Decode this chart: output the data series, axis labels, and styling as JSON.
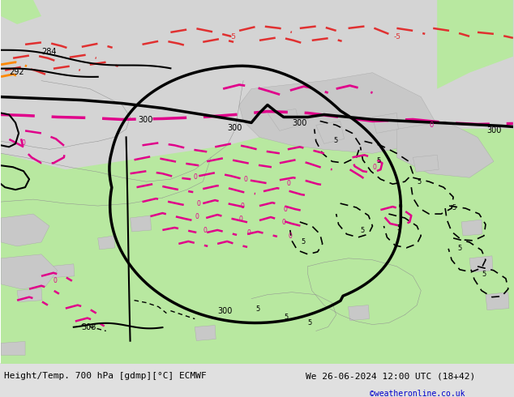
{
  "title_left": "Height/Temp. 700 hPa [gdmp][°C] ECMWF",
  "title_right": "We 26-06-2024 12:00 UTC (18+42)",
  "copyright": "©weatheronline.co.uk",
  "fig_width": 6.34,
  "fig_height": 4.9,
  "land_green": "#b8e8a0",
  "sea_gray": "#c8c8c8",
  "bg_top": "#d4d4d4",
  "text_color_left": "#000000",
  "text_color_right": "#000000",
  "text_color_copy": "#0000cc",
  "black_contour_lw": 2.5,
  "thin_black_lw": 1.5,
  "red_dash_color": "#e03030",
  "orange_dash_color": "#ff8800",
  "magenta_color": "#e0008a",
  "footer_bg": "#e0e0e0"
}
